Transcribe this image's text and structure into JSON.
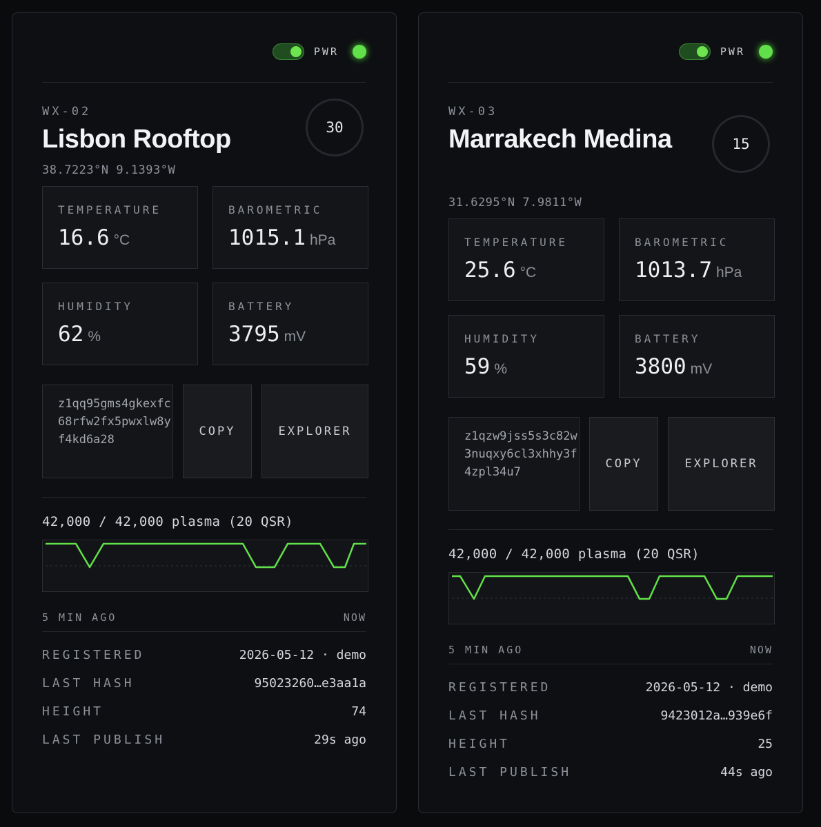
{
  "accent_color": "#62e04a",
  "stations": [
    {
      "power_label": "PWR",
      "power_on": true,
      "code": "WX-02",
      "name": "Lisbon Rooftop",
      "coords": "38.7223°N 9.1393°W",
      "ring_value": "30",
      "metrics": [
        {
          "label": "TEMPERATURE",
          "value": "16.6",
          "unit": "°C"
        },
        {
          "label": "BAROMETRIC",
          "value": "1015.1",
          "unit": "hPa"
        },
        {
          "label": "HUMIDITY",
          "value": "62",
          "unit": "%"
        },
        {
          "label": "BATTERY",
          "value": "3795",
          "unit": "mV"
        }
      ],
      "address": "z1qq95gms4gkexfc68rfw2fx5pwxlw8y f4kd6a28",
      "copy_label": "COPY",
      "explorer_label": "EXPLORER",
      "plasma_text": "42,000 / 42,000 plasma (20 QSR)",
      "chart_start_label": "5 MIN AGO",
      "chart_end_label": "NOW",
      "details": [
        {
          "key": "REGISTERED",
          "value": "2026-05-12 · demo"
        },
        {
          "key": "LAST HASH",
          "value": "95023260…e3aa1a"
        },
        {
          "key": "HEIGHT",
          "value": "74"
        },
        {
          "key": "LAST PUBLISH",
          "value": "29s ago"
        }
      ]
    },
    {
      "power_label": "PWR",
      "power_on": true,
      "code": "WX-03",
      "name": "Marrakech Medina",
      "coords": "31.6295°N 7.9811°W",
      "ring_value": "15",
      "metrics": [
        {
          "label": "TEMPERATURE",
          "value": "25.6",
          "unit": "°C"
        },
        {
          "label": "BAROMETRIC",
          "value": "1013.7",
          "unit": "hPa"
        },
        {
          "label": "HUMIDITY",
          "value": "59",
          "unit": "%"
        },
        {
          "label": "BATTERY",
          "value": "3800",
          "unit": "mV"
        }
      ],
      "address": "z1qzw9jss5s3c82w3nuqxy6cl3xhhy3f4zpl34u7",
      "copy_label": "COPY",
      "explorer_label": "EXPLORER",
      "plasma_text": "42,000 / 42,000 plasma (20 QSR)",
      "chart_start_label": "5 MIN AGO",
      "chart_end_label": "NOW",
      "details": [
        {
          "key": "REGISTERED",
          "value": "2026-05-12 · demo"
        },
        {
          "key": "LAST HASH",
          "value": "9423012a…939e6f"
        },
        {
          "key": "HEIGHT",
          "value": "25"
        },
        {
          "key": "LAST PUBLISH",
          "value": "44s ago"
        }
      ]
    }
  ]
}
